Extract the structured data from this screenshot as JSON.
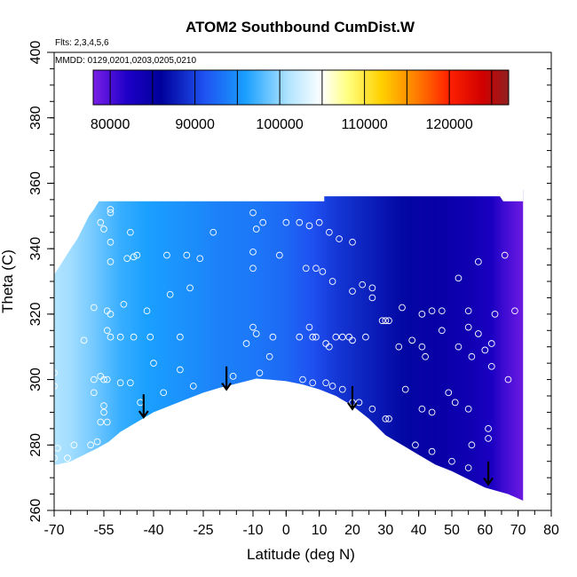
{
  "chart_data": {
    "type": "heatmap",
    "title": "ATOM2 Southbound CumDist.W",
    "flights_note": "Flts: 2,3,4,5,6",
    "dates_note": "MMDD: 0129,0201,0203,0205,0210",
    "xlabel": "Latitude (deg N)",
    "ylabel": "Theta (C)",
    "xlim": [
      -70,
      80
    ],
    "ylim": [
      260,
      400
    ],
    "x_ticks": [
      "-70",
      "-55",
      "-40",
      "-25",
      "-10",
      "0",
      "10",
      "20",
      "30",
      "40",
      "50",
      "60",
      "70",
      "80"
    ],
    "x_tick_values": [
      -70,
      -55,
      -40,
      -25,
      -10,
      0,
      10,
      20,
      30,
      40,
      50,
      60,
      70,
      80
    ],
    "y_ticks": [
      "260",
      "280",
      "300",
      "320",
      "340",
      "360",
      "380",
      "400"
    ],
    "y_tick_values": [
      260,
      280,
      300,
      320,
      340,
      360,
      380,
      400
    ],
    "colorbar": {
      "min": 78000,
      "max": 127000,
      "tick_values": [
        80000,
        90000,
        100000,
        110000,
        120000
      ],
      "tick_labels": [
        "80000",
        "90000",
        "100000",
        "110000",
        "120000"
      ],
      "boundaries": [
        80000,
        85000,
        90000,
        95000,
        100000,
        105000,
        110000,
        115000,
        120000,
        125000
      ],
      "color_stops": [
        {
          "v": 78000,
          "c": "#7a1fe6"
        },
        {
          "v": 82000,
          "c": "#1e00c8"
        },
        {
          "v": 86000,
          "c": "#00009a"
        },
        {
          "v": 91000,
          "c": "#1e50f0"
        },
        {
          "v": 96000,
          "c": "#1aa0ff"
        },
        {
          "v": 101000,
          "c": "#b0e4ff"
        },
        {
          "v": 105000,
          "c": "#ffffff"
        },
        {
          "v": 108000,
          "c": "#ffff80"
        },
        {
          "v": 112000,
          "c": "#ffd000"
        },
        {
          "v": 116000,
          "c": "#ff8000"
        },
        {
          "v": 120000,
          "c": "#ff2000"
        },
        {
          "v": 124000,
          "c": "#d00000"
        },
        {
          "v": 127000,
          "c": "#902020"
        }
      ]
    },
    "field_columns": [
      {
        "lat": -72.0,
        "value": 101500
      },
      {
        "lat": -65,
        "value": 100500
      },
      {
        "lat": -58,
        "value": 99000
      },
      {
        "lat": -50,
        "value": 97000
      },
      {
        "lat": -42,
        "value": 96000
      },
      {
        "lat": -30,
        "value": 95000
      },
      {
        "lat": -20,
        "value": 94000
      },
      {
        "lat": -10,
        "value": 93500
      },
      {
        "lat": 0,
        "value": 92500
      },
      {
        "lat": 8,
        "value": 91000
      },
      {
        "lat": 15,
        "value": 89500
      },
      {
        "lat": 25,
        "value": 88000
      },
      {
        "lat": 35,
        "value": 86500
      },
      {
        "lat": 45,
        "value": 85000
      },
      {
        "lat": 55,
        "value": 84000
      },
      {
        "lat": 62,
        "value": 82500
      },
      {
        "lat": 66,
        "value": 80500
      },
      {
        "lat": 72,
        "value": 78500
      }
    ],
    "region_top": [
      {
        "lat": -71.0,
        "theta": 331
      },
      {
        "lat": -70.0,
        "theta": 332
      },
      {
        "lat": -67.5,
        "theta": 336
      },
      {
        "lat": -65,
        "theta": 340
      },
      {
        "lat": -63,
        "theta": 343
      },
      {
        "lat": -61,
        "theta": 347
      },
      {
        "lat": -59.5,
        "theta": 350
      },
      {
        "lat": -58,
        "theta": 352
      },
      {
        "lat": -56.5,
        "theta": 354.5
      },
      {
        "lat": 11.5,
        "theta": 354.5
      },
      {
        "lat": 11.5,
        "theta": 356
      },
      {
        "lat": 66.5,
        "theta": 356
      },
      {
        "lat": 66.5,
        "theta": 358
      },
      {
        "lat": 71.5,
        "theta": 358
      }
    ],
    "region_bottom": [
      {
        "lat": 71.5,
        "theta": 263
      },
      {
        "lat": 67,
        "theta": 265
      },
      {
        "lat": 60,
        "theta": 267
      },
      {
        "lat": 50,
        "theta": 272
      },
      {
        "lat": 45,
        "theta": 274
      },
      {
        "lat": 40,
        "theta": 277
      },
      {
        "lat": 35,
        "theta": 280
      },
      {
        "lat": 30,
        "theta": 283
      },
      {
        "lat": 25,
        "theta": 288
      },
      {
        "lat": 20,
        "theta": 292
      },
      {
        "lat": 15,
        "theta": 295
      },
      {
        "lat": 10,
        "theta": 297
      },
      {
        "lat": 5,
        "theta": 298.5
      },
      {
        "lat": 0,
        "theta": 299.5
      },
      {
        "lat": -5,
        "theta": 300
      },
      {
        "lat": -9,
        "theta": 300.3
      },
      {
        "lat": -14,
        "theta": 299
      },
      {
        "lat": -20,
        "theta": 297.5
      },
      {
        "lat": -25,
        "theta": 296
      },
      {
        "lat": -30,
        "theta": 294
      },
      {
        "lat": -35,
        "theta": 292
      },
      {
        "lat": -40,
        "theta": 290
      },
      {
        "lat": -45,
        "theta": 287
      },
      {
        "lat": -50,
        "theta": 284
      },
      {
        "lat": -53.5,
        "theta": 281
      },
      {
        "lat": -57,
        "theta": 279
      },
      {
        "lat": -61,
        "theta": 277
      },
      {
        "lat": -65,
        "theta": 275
      },
      {
        "lat": -69,
        "theta": 274
      },
      {
        "lat": -71.0,
        "theta": 274
      }
    ],
    "region_right_edge": [
      {
        "lat": 63.3,
        "theta": 358
      },
      {
        "lat": 64.0,
        "theta": 357
      },
      {
        "lat": 64.5,
        "theta": 356
      },
      {
        "lat": 65.5,
        "theta": 354.5
      }
    ],
    "arrows": [
      {
        "lat": -43,
        "theta_top": 295.5,
        "theta_tip": 288.5
      },
      {
        "lat": -18,
        "theta_top": 304,
        "theta_tip": 297
      },
      {
        "lat": 20,
        "theta_top": 298,
        "theta_tip": 291
      },
      {
        "lat": 61,
        "theta_top": 275,
        "theta_tip": 268
      }
    ],
    "points": [
      [
        -53,
        352
      ],
      [
        -53,
        351
      ],
      [
        -56,
        348
      ],
      [
        -55,
        346
      ],
      [
        -47,
        345
      ],
      [
        -53,
        342
      ],
      [
        -45,
        338
      ],
      [
        -53,
        336
      ],
      [
        -48,
        337
      ],
      [
        -46,
        337.5
      ],
      [
        -36,
        338
      ],
      [
        -30,
        338
      ],
      [
        -26,
        337
      ],
      [
        -22,
        345
      ],
      [
        -72,
        331
      ],
      [
        -58,
        322
      ],
      [
        -54,
        321
      ],
      [
        -53,
        320
      ],
      [
        -49,
        323
      ],
      [
        -42,
        321
      ],
      [
        -35,
        326
      ],
      [
        -29,
        328
      ],
      [
        -61,
        312
      ],
      [
        -54,
        315
      ],
      [
        -53,
        313
      ],
      [
        -50,
        313
      ],
      [
        -46,
        313
      ],
      [
        -41,
        313
      ],
      [
        -32,
        313
      ],
      [
        -56,
        301
      ],
      [
        -55,
        300
      ],
      [
        -54,
        300
      ],
      [
        -50,
        299
      ],
      [
        -47,
        299
      ],
      [
        -40,
        305
      ],
      [
        -32,
        303
      ],
      [
        -28,
        298
      ],
      [
        -37,
        296
      ],
      [
        -44,
        293
      ],
      [
        -54,
        287
      ],
      [
        -56,
        287
      ],
      [
        -57,
        281
      ],
      [
        -59,
        280
      ],
      [
        -64,
        280
      ],
      [
        -66,
        276
      ],
      [
        -70,
        276
      ],
      [
        -69,
        279
      ],
      [
        -58,
        300
      ],
      [
        -58,
        296
      ],
      [
        -55,
        292
      ],
      [
        -55,
        290
      ],
      [
        -70,
        302
      ],
      [
        -70,
        298
      ],
      [
        -71,
        286
      ],
      [
        -10,
        351
      ],
      [
        -9,
        346
      ],
      [
        -7,
        348
      ],
      [
        -2,
        338
      ],
      [
        -10,
        339
      ],
      [
        -10,
        334
      ],
      [
        -10,
        316
      ],
      [
        -9,
        314
      ],
      [
        -4,
        313
      ],
      [
        -5,
        307
      ],
      [
        -8,
        302
      ],
      [
        -16,
        301
      ],
      [
        -12,
        311
      ],
      [
        0,
        348
      ],
      [
        4,
        348
      ],
      [
        7,
        347
      ],
      [
        10,
        348
      ],
      [
        13,
        345
      ],
      [
        16,
        343
      ],
      [
        20,
        342
      ],
      [
        6,
        334
      ],
      [
        9,
        334
      ],
      [
        11,
        333
      ],
      [
        14,
        330
      ],
      [
        4,
        313
      ],
      [
        7,
        316
      ],
      [
        8,
        313
      ],
      [
        9,
        313
      ],
      [
        12,
        311
      ],
      [
        13,
        310
      ],
      [
        15,
        313
      ],
      [
        17,
        313
      ],
      [
        19,
        313
      ],
      [
        20,
        312
      ],
      [
        24,
        313
      ],
      [
        29,
        318
      ],
      [
        31,
        318
      ],
      [
        35,
        322
      ],
      [
        41,
        320
      ],
      [
        44,
        321
      ],
      [
        47,
        321
      ],
      [
        55,
        316
      ],
      [
        58,
        314
      ],
      [
        5,
        300
      ],
      [
        8,
        299
      ],
      [
        12,
        299
      ],
      [
        14,
        298
      ],
      [
        17,
        297
      ],
      [
        20,
        293
      ],
      [
        22,
        293
      ],
      [
        26,
        291
      ],
      [
        30,
        288
      ],
      [
        31,
        288
      ],
      [
        36,
        297
      ],
      [
        41,
        291
      ],
      [
        44,
        290
      ],
      [
        49,
        296
      ],
      [
        51,
        293
      ],
      [
        55,
        291
      ],
      [
        39,
        280
      ],
      [
        44,
        278
      ],
      [
        50,
        275
      ],
      [
        55,
        273
      ],
      [
        56,
        280
      ],
      [
        61,
        285
      ],
      [
        61,
        282
      ],
      [
        20,
        327
      ],
      [
        23,
        329
      ],
      [
        26,
        328
      ],
      [
        26,
        325
      ],
      [
        30,
        318
      ],
      [
        34,
        310
      ],
      [
        38,
        312
      ],
      [
        41,
        310
      ],
      [
        42,
        307
      ],
      [
        47,
        315
      ],
      [
        52,
        310
      ],
      [
        56,
        307
      ],
      [
        60,
        309
      ],
      [
        62,
        304
      ],
      [
        66,
        338
      ],
      [
        63,
        320
      ],
      [
        62,
        311
      ],
      [
        55,
        321
      ],
      [
        52,
        331
      ],
      [
        58,
        336
      ],
      [
        69,
        321
      ],
      [
        67,
        300
      ]
    ]
  }
}
